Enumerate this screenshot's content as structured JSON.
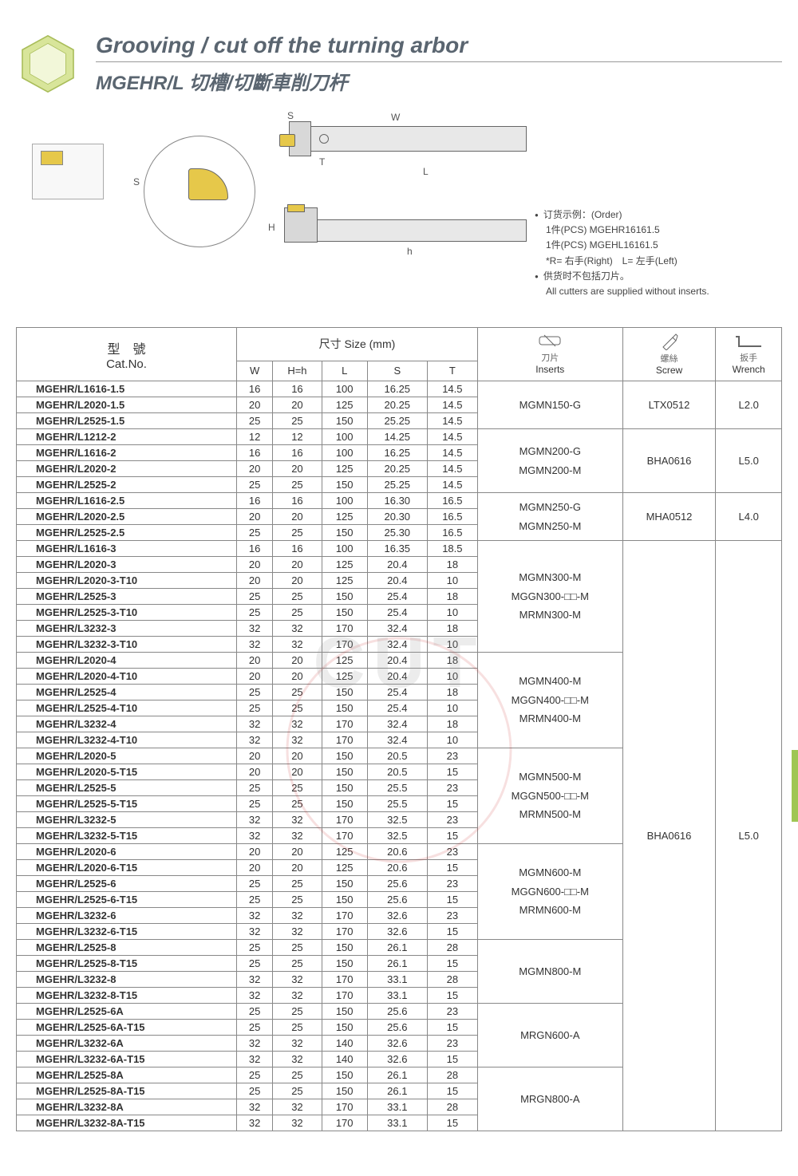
{
  "header": {
    "title_en": "Grooving / cut off the turning arbor",
    "title_cn": "MGEHR/L 切槽/切斷車削刀杆"
  },
  "diagram_labels": {
    "W": "W",
    "S": "S",
    "T": "T",
    "L": "L",
    "H": "H",
    "h": "h"
  },
  "order_info": {
    "line1": "订货示例：(Order)",
    "line2": "1件(PCS) MGEHR16161.5",
    "line3": "1件(PCS) MGEHL16161.5",
    "line4": "*R= 右手(Right)　L= 左手(Left)",
    "line5": "供货时不包括刀片。",
    "line6": "All cutters are supplied without inserts."
  },
  "table": {
    "headers": {
      "catno_cn": "型　號",
      "catno_en": "Cat.No.",
      "size_cn": "尺寸",
      "size_en": "Size (mm)",
      "W": "W",
      "H": "H=h",
      "L": "L",
      "S": "S",
      "T": "T",
      "inserts_cn": "刀片",
      "inserts_en": "Inserts",
      "screw_cn": "螺絲",
      "screw_en": "Screw",
      "wrench_cn": "扳手",
      "wrench_en": "Wrench"
    },
    "groups": [
      {
        "inserts": "MGMN150-G",
        "screw": "LTX0512",
        "wrench": "L2.0",
        "rows": [
          [
            "MGEHR/L1616-1.5",
            "16",
            "16",
            "100",
            "16.25",
            "14.5"
          ],
          [
            "MGEHR/L2020-1.5",
            "20",
            "20",
            "125",
            "20.25",
            "14.5"
          ],
          [
            "MGEHR/L2525-1.5",
            "25",
            "25",
            "150",
            "25.25",
            "14.5"
          ]
        ]
      },
      {
        "inserts": "MGMN200-G\nMGMN200-M",
        "screw": "BHA0616",
        "wrench": "L5.0",
        "rows": [
          [
            "MGEHR/L1212-2",
            "12",
            "12",
            "100",
            "14.25",
            "14.5"
          ],
          [
            "MGEHR/L1616-2",
            "16",
            "16",
            "100",
            "16.25",
            "14.5"
          ],
          [
            "MGEHR/L2020-2",
            "20",
            "20",
            "125",
            "20.25",
            "14.5"
          ],
          [
            "MGEHR/L2525-2",
            "25",
            "25",
            "150",
            "25.25",
            "14.5"
          ]
        ]
      },
      {
        "inserts": "MGMN250-G\nMGMN250-M",
        "screw": "MHA0512",
        "wrench": "L4.0",
        "rows": [
          [
            "MGEHR/L1616-2.5",
            "16",
            "16",
            "100",
            "16.30",
            "16.5"
          ],
          [
            "MGEHR/L2020-2.5",
            "20",
            "20",
            "125",
            "20.30",
            "16.5"
          ],
          [
            "MGEHR/L2525-2.5",
            "25",
            "25",
            "150",
            "25.30",
            "16.5"
          ]
        ]
      },
      {
        "inserts": "MGMN300-M\nMGGN300-□□-M\nMRMN300-M",
        "screw": "",
        "wrench": "",
        "rows": [
          [
            "MGEHR/L1616-3",
            "16",
            "16",
            "100",
            "16.35",
            "18.5"
          ],
          [
            "MGEHR/L2020-3",
            "20",
            "20",
            "125",
            "20.4",
            "18"
          ],
          [
            "MGEHR/L2020-3-T10",
            "20",
            "20",
            "125",
            "20.4",
            "10"
          ],
          [
            "MGEHR/L2525-3",
            "25",
            "25",
            "150",
            "25.4",
            "18"
          ],
          [
            "MGEHR/L2525-3-T10",
            "25",
            "25",
            "150",
            "25.4",
            "10"
          ],
          [
            "MGEHR/L3232-3",
            "32",
            "32",
            "170",
            "32.4",
            "18"
          ],
          [
            "MGEHR/L3232-3-T10",
            "32",
            "32",
            "170",
            "32.4",
            "10"
          ]
        ]
      },
      {
        "inserts": "MGMN400-M\nMGGN400-□□-M\nMRMN400-M",
        "screw": "",
        "wrench": "",
        "rows": [
          [
            "MGEHR/L2020-4",
            "20",
            "20",
            "125",
            "20.4",
            "18"
          ],
          [
            "MGEHR/L2020-4-T10",
            "20",
            "20",
            "125",
            "20.4",
            "10"
          ],
          [
            "MGEHR/L2525-4",
            "25",
            "25",
            "150",
            "25.4",
            "18"
          ],
          [
            "MGEHR/L2525-4-T10",
            "25",
            "25",
            "150",
            "25.4",
            "10"
          ],
          [
            "MGEHR/L3232-4",
            "32",
            "32",
            "170",
            "32.4",
            "18"
          ],
          [
            "MGEHR/L3232-4-T10",
            "32",
            "32",
            "170",
            "32.4",
            "10"
          ]
        ]
      },
      {
        "inserts": "MGMN500-M\nMGGN500-□□-M\nMRMN500-M",
        "screw": "BHA0616",
        "wrench": "L5.0",
        "rows": [
          [
            "MGEHR/L2020-5",
            "20",
            "20",
            "150",
            "20.5",
            "23"
          ],
          [
            "MGEHR/L2020-5-T15",
            "20",
            "20",
            "150",
            "20.5",
            "15"
          ],
          [
            "MGEHR/L2525-5",
            "25",
            "25",
            "150",
            "25.5",
            "23"
          ],
          [
            "MGEHR/L2525-5-T15",
            "25",
            "25",
            "150",
            "25.5",
            "15"
          ],
          [
            "MGEHR/L3232-5",
            "32",
            "32",
            "170",
            "32.5",
            "23"
          ],
          [
            "MGEHR/L3232-5-T15",
            "32",
            "32",
            "170",
            "32.5",
            "15"
          ]
        ]
      },
      {
        "inserts": "MGMN600-M\nMGGN600-□□-M\nMRMN600-M",
        "screw": "",
        "wrench": "",
        "rows": [
          [
            "MGEHR/L2020-6",
            "20",
            "20",
            "125",
            "20.6",
            "23"
          ],
          [
            "MGEHR/L2020-6-T15",
            "20",
            "20",
            "125",
            "20.6",
            "15"
          ],
          [
            "MGEHR/L2525-6",
            "25",
            "25",
            "150",
            "25.6",
            "23"
          ],
          [
            "MGEHR/L2525-6-T15",
            "25",
            "25",
            "150",
            "25.6",
            "15"
          ],
          [
            "MGEHR/L3232-6",
            "32",
            "32",
            "170",
            "32.6",
            "23"
          ],
          [
            "MGEHR/L3232-6-T15",
            "32",
            "32",
            "170",
            "32.6",
            "15"
          ]
        ]
      },
      {
        "inserts": "MGMN800-M",
        "screw": "",
        "wrench": "",
        "rows": [
          [
            "MGEHR/L2525-8",
            "25",
            "25",
            "150",
            "26.1",
            "28"
          ],
          [
            "MGEHR/L2525-8-T15",
            "25",
            "25",
            "150",
            "26.1",
            "15"
          ],
          [
            "MGEHR/L3232-8",
            "32",
            "32",
            "170",
            "33.1",
            "28"
          ],
          [
            "MGEHR/L3232-8-T15",
            "32",
            "32",
            "170",
            "33.1",
            "15"
          ]
        ]
      },
      {
        "inserts": "MRGN600-A",
        "screw": "",
        "wrench": "",
        "rows": [
          [
            "MGEHR/L2525-6A",
            "25",
            "25",
            "150",
            "25.6",
            "23"
          ],
          [
            "MGEHR/L2525-6A-T15",
            "25",
            "25",
            "150",
            "25.6",
            "15"
          ],
          [
            "MGEHR/L3232-6A",
            "32",
            "32",
            "140",
            "32.6",
            "23"
          ],
          [
            "MGEHR/L3232-6A-T15",
            "32",
            "32",
            "140",
            "32.6",
            "15"
          ]
        ]
      },
      {
        "inserts": "MRGN800-A",
        "screw": "",
        "wrench": "",
        "rows": [
          [
            "MGEHR/L2525-8A",
            "25",
            "25",
            "150",
            "26.1",
            "28"
          ],
          [
            "MGEHR/L2525-8A-T15",
            "25",
            "25",
            "150",
            "26.1",
            "15"
          ],
          [
            "MGEHR/L3232-8A",
            "32",
            "32",
            "170",
            "33.1",
            "28"
          ],
          [
            "MGEHR/L3232-8A-T15",
            "32",
            "32",
            "170",
            "33.1",
            "15"
          ]
        ]
      }
    ],
    "big_screw_span": {
      "screw": "BHA0616",
      "wrench": "L5.0"
    }
  },
  "watermark": "CUT",
  "colors": {
    "yellow": "#e6c84a",
    "grey": "#5a6570",
    "green": "#9fc654"
  }
}
